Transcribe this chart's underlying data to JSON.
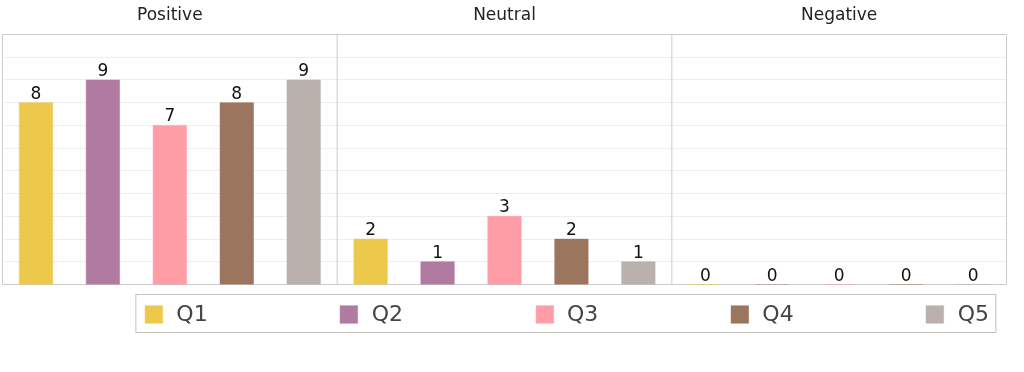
{
  "chart_data": {
    "type": "bar",
    "categories": [
      "Positive",
      "Neutral",
      "Negative"
    ],
    "series": [
      {
        "name": "Q1",
        "color": "#ecc94b",
        "values": [
          8,
          2,
          0
        ]
      },
      {
        "name": "Q2",
        "color": "#b07aa1",
        "values": [
          9,
          1,
          0
        ]
      },
      {
        "name": "Q3",
        "color": "#ff9da7",
        "values": [
          7,
          3,
          0
        ]
      },
      {
        "name": "Q4",
        "color": "#9c755f",
        "values": [
          8,
          2,
          0
        ]
      },
      {
        "name": "Q5",
        "color": "#bab0ac",
        "values": [
          9,
          1,
          0
        ]
      }
    ],
    "ylim": [
      0,
      11
    ],
    "yticks": [
      {
        "value": 0,
        "label": null
      },
      {
        "value": 1,
        "label": null
      },
      {
        "value": 2,
        "label": null
      },
      {
        "value": 3,
        "label": null
      },
      {
        "value": 4,
        "label": null
      },
      {
        "value": 5,
        "label": null
      },
      {
        "value": 6,
        "label": null
      },
      {
        "value": 7,
        "label": null
      },
      {
        "value": 8,
        "label": null
      },
      {
        "value": 9,
        "label": null
      },
      {
        "value": 10,
        "label": null
      },
      {
        "value": 11,
        "label": null
      }
    ],
    "tick_labels": "x",
    "grid": "y",
    "data_labels": true,
    "legend": "bottom"
  }
}
